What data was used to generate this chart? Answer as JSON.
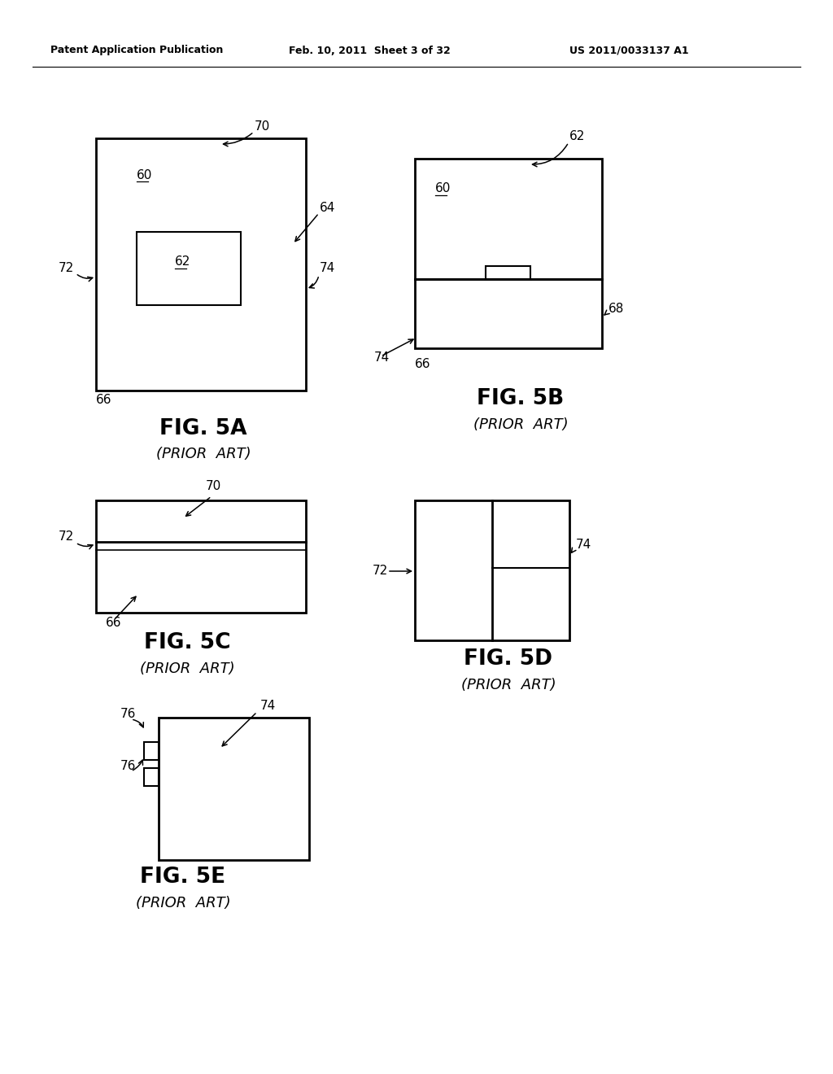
{
  "bg_color": "#ffffff",
  "header_left": "Patent Application Publication",
  "header_mid": "Feb. 10, 2011  Sheet 3 of 32",
  "header_right": "US 2011/0033137 A1",
  "line_color": "#000000"
}
